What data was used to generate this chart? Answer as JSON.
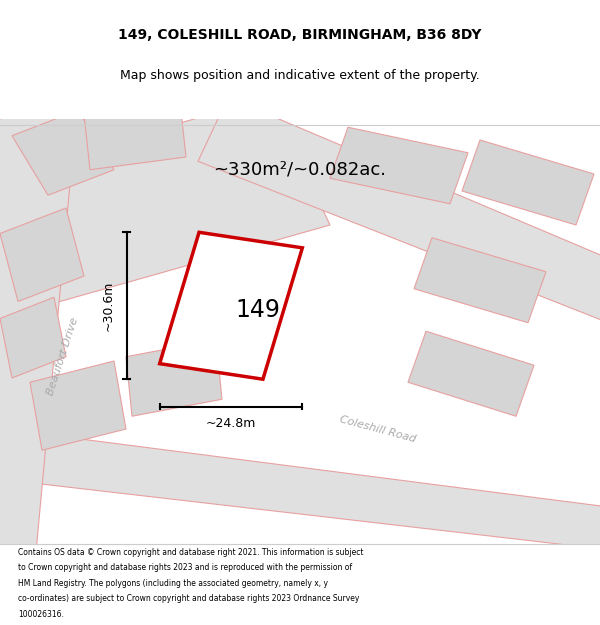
{
  "title_line1": "149, COLESHILL ROAD, BIRMINGHAM, B36 8DY",
  "title_line2": "Map shows position and indicative extent of the property.",
  "area_label": "~330m²/~0.082ac.",
  "number_label": "149",
  "dim_width": "~24.8m",
  "dim_height": "~30.6m",
  "street1": "Beaufort Drive",
  "street2": "Coleshill Road",
  "footer_lines": [
    "Contains OS data © Crown copyright and database right 2021. This information is subject",
    "to Crown copyright and database rights 2023 and is reproduced with the permission of",
    "HM Land Registry. The polygons (including the associated geometry, namely x, y",
    "co-ordinates) are subject to Crown copyright and database rights 2023 Ordnance Survey",
    "100026316."
  ],
  "bg_color": "#f2f0f0",
  "road_fill": "#e0e0e0",
  "road_edge": "#e8a0a0",
  "bld_fill": "#d5d5d5",
  "bld_edge": "#e8a0a0",
  "property_color": "#cc0000",
  "property_fill": "white",
  "fig_width": 6.0,
  "fig_height": 6.25
}
